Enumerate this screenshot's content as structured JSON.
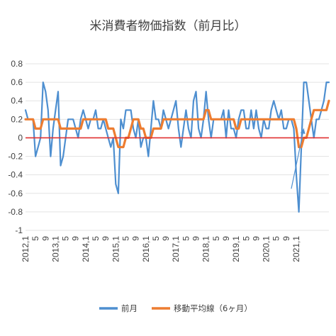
{
  "chart_data": {
    "type": "line",
    "title": "米消費者物価指数（前月比）",
    "xlabel": "",
    "ylabel": "",
    "ylim": [
      -1,
      0.8
    ],
    "y_ticks": [
      "0.8",
      "0.6",
      "0.4",
      "0.2",
      "0",
      "-0.2",
      "-0.4",
      "-0.6",
      "-0.8",
      "-1"
    ],
    "x_tick_labels": [
      "2012,1",
      "5",
      "9",
      "2013,1",
      "5",
      "9",
      "2014,1",
      "5",
      "9",
      "2015,1",
      "5",
      "9",
      "2016,1",
      "5",
      "9",
      "2017,1",
      "5",
      "9",
      "2018,1",
      "5",
      "9",
      "2019,1",
      "5",
      "9",
      "2020,1",
      "5",
      "9",
      "2021,1"
    ],
    "x_start": "2012-01",
    "x_end": "2021-04",
    "legend_position": "bottom",
    "zero_line_color": "#e03030",
    "series": [
      {
        "name": "前月",
        "color": "#4e8fd0",
        "values": [
          0.3,
          0.2,
          0.2,
          0.2,
          -0.2,
          -0.1,
          0.0,
          0.6,
          0.5,
          0.3,
          -0.2,
          0.1,
          0.3,
          0.5,
          -0.3,
          -0.2,
          0.0,
          0.2,
          0.2,
          0.2,
          0.1,
          0.0,
          0.2,
          0.3,
          0.2,
          0.1,
          0.2,
          0.2,
          0.3,
          0.1,
          0.1,
          0.2,
          0.1,
          0.0,
          -0.1,
          0.0,
          -0.5,
          -0.6,
          0.2,
          0.1,
          0.3,
          0.3,
          0.3,
          0.1,
          0.0,
          0.2,
          -0.1,
          0.0,
          0.0,
          -0.2,
          0.1,
          0.4,
          0.2,
          0.2,
          0.1,
          0.3,
          0.2,
          0.1,
          0.2,
          0.3,
          0.4,
          0.1,
          -0.1,
          0.1,
          0.3,
          0.1,
          0.0,
          0.4,
          0.5,
          0.1,
          0.0,
          0.2,
          0.5,
          0.2,
          0.0,
          0.2,
          0.2,
          0.2,
          0.2,
          0.3,
          0.0,
          0.3,
          0.1,
          0.1,
          0.0,
          0.2,
          0.3,
          0.3,
          0.1,
          0.1,
          0.3,
          0.1,
          0.3,
          0.1,
          0.0,
          0.2,
          0.1,
          0.1,
          0.3,
          0.4,
          0.3,
          0.2,
          0.3,
          0.1,
          0.1,
          0.2,
          0.2,
          0.1,
          -0.4,
          -0.8,
          -0.1,
          0.6,
          0.6,
          0.4,
          0.2,
          0.0,
          0.2,
          0.2,
          0.3,
          0.4,
          0.6,
          0.6
        ]
      },
      {
        "name": "移動平均線（6ヶ月）",
        "color": "#ed7d31",
        "values": [
          0.2,
          0.2,
          0.2,
          0.2,
          0.1,
          0.1,
          0.1,
          0.2,
          0.2,
          0.2,
          0.2,
          0.2,
          0.2,
          0.2,
          0.1,
          0.1,
          0.1,
          0.1,
          0.1,
          0.1,
          0.1,
          0.1,
          0.1,
          0.2,
          0.2,
          0.2,
          0.2,
          0.2,
          0.2,
          0.2,
          0.2,
          0.2,
          0.2,
          0.1,
          0.1,
          0.1,
          0.0,
          -0.1,
          -0.1,
          -0.1,
          0.0,
          0.0,
          0.1,
          0.2,
          0.2,
          0.2,
          0.1,
          0.1,
          0.0,
          0.0,
          0.0,
          0.1,
          0.1,
          0.1,
          0.1,
          0.2,
          0.2,
          0.2,
          0.2,
          0.2,
          0.2,
          0.2,
          0.2,
          0.2,
          0.2,
          0.2,
          0.2,
          0.2,
          0.2,
          0.2,
          0.2,
          0.2,
          0.3,
          0.3,
          0.2,
          0.2,
          0.2,
          0.2,
          0.2,
          0.2,
          0.2,
          0.2,
          0.2,
          0.2,
          0.1,
          0.1,
          0.2,
          0.2,
          0.2,
          0.2,
          0.2,
          0.2,
          0.2,
          0.2,
          0.2,
          0.2,
          0.2,
          0.2,
          0.2,
          0.2,
          0.2,
          0.2,
          0.2,
          0.2,
          0.2,
          0.2,
          0.2,
          0.2,
          0.1,
          -0.1,
          -0.1,
          0.0,
          0.0,
          0.1,
          0.2,
          0.3,
          0.3,
          0.3,
          0.3,
          0.3,
          0.3,
          0.4
        ]
      }
    ],
    "annotations": [
      {
        "type": "arrow",
        "color": "#4e8fd0",
        "from": [
          "2020-11",
          -0.55
        ],
        "to": [
          "2021-04",
          0.1
        ]
      }
    ]
  }
}
